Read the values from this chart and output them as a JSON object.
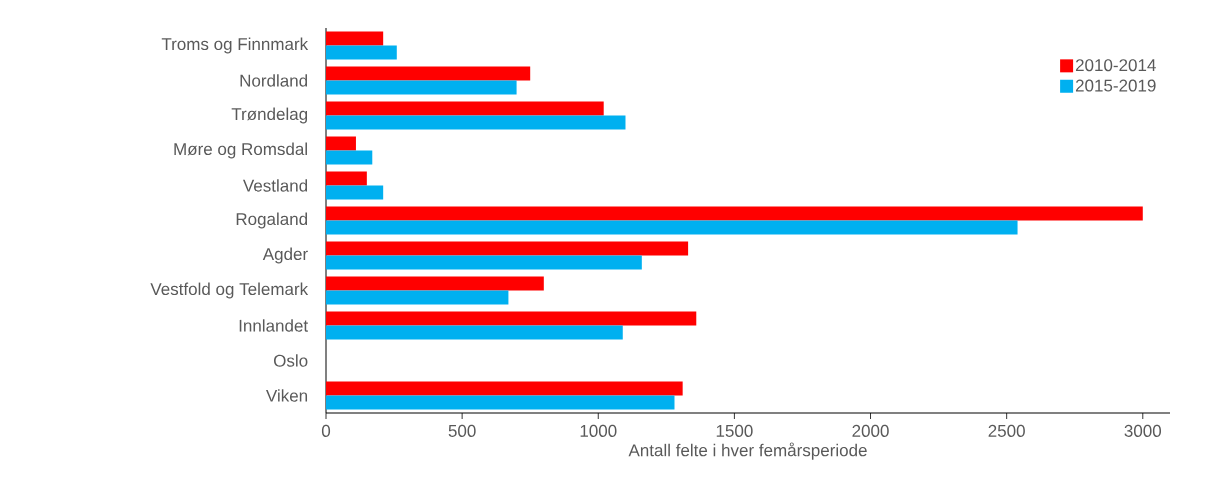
{
  "chart_data": {
    "type": "bar",
    "orientation": "horizontal",
    "xlabel": "Antall felte i hver femårsperiode",
    "categories": [
      "Troms og Finnmark",
      "Nordland",
      "Trøndelag",
      "Møre og Romsdal",
      "Vestland",
      "Rogaland",
      "Agder",
      "Vestfold og Telemark",
      "Innlandet",
      "Oslo",
      "Viken"
    ],
    "series": [
      {
        "name": "2010-2014",
        "color": "#ff0000",
        "values": [
          210,
          750,
          1020,
          110,
          150,
          3000,
          1330,
          800,
          1360,
          null,
          1310
        ]
      },
      {
        "name": "2015-2019",
        "color": "#00b0f0",
        "values": [
          260,
          700,
          1100,
          170,
          210,
          2540,
          1160,
          670,
          1090,
          null,
          1280
        ]
      }
    ],
    "xlim": [
      0,
      3100
    ],
    "xticks": [
      0,
      500,
      1000,
      1500,
      2000,
      2500,
      3000
    ],
    "legend": "top right",
    "grid": false
  }
}
